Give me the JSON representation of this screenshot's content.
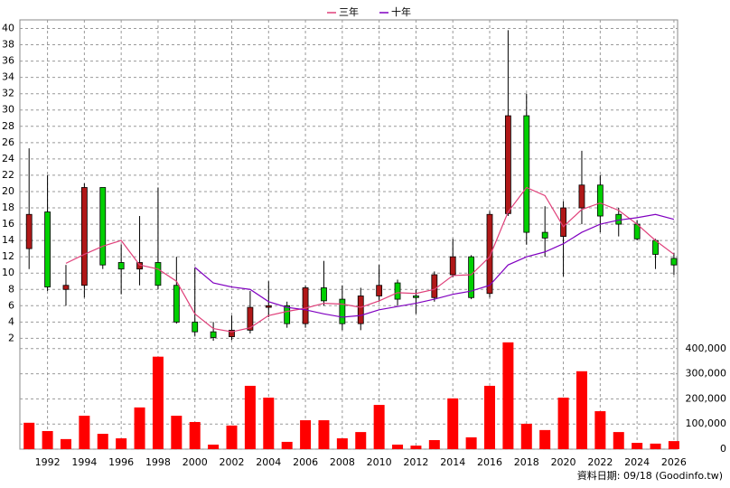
{
  "chart_data": {
    "type": "candlestick",
    "x": [
      1991,
      1992,
      1993,
      1994,
      1995,
      1996,
      1997,
      1998,
      1999,
      2000,
      2001,
      2002,
      2003,
      2004,
      2005,
      2006,
      2007,
      2008,
      2009,
      2010,
      2011,
      2012,
      2013,
      2014,
      2015,
      2016,
      2017,
      2018,
      2019,
      2020,
      2021,
      2022,
      2023,
      2024,
      2025,
      2026
    ],
    "xlim": [
      1990.5,
      2026.2
    ],
    "xticks": [
      1992,
      1994,
      1996,
      1998,
      2000,
      2002,
      2004,
      2006,
      2008,
      2010,
      2012,
      2014,
      2016,
      2018,
      2020,
      2022,
      2024,
      2026
    ],
    "ylim": [
      1.6,
      40.5
    ],
    "yticks": [
      2,
      4,
      6,
      8,
      10,
      12,
      14,
      16,
      18,
      20,
      22,
      24,
      26,
      28,
      30,
      32,
      34,
      36,
      38,
      40
    ],
    "y2lim": [
      0,
      428000
    ],
    "y2ticks": [
      0,
      {
        "value": 100000,
        "label": "100,000"
      },
      {
        "value": 200000,
        "label": "200,000"
      },
      {
        "value": 300000,
        "label": "300,000"
      },
      {
        "value": 400000,
        "label": "400,000"
      }
    ],
    "grid": true,
    "up_color": "#b01818",
    "down_color": "#00d000",
    "open": [
      13,
      17.5,
      8,
      8.5,
      20.5,
      11.3,
      10.5,
      11.3,
      8.5,
      4,
      2.8,
      2.2,
      3,
      5.8,
      6,
      3.8,
      8.2,
      6.8,
      3.8,
      7.2,
      8.8,
      7.2,
      7,
      9.8,
      12,
      7.5,
      17.3,
      29.3,
      15,
      14.5,
      18,
      20.8,
      17.2,
      16,
      14,
      11.8
    ],
    "high": [
      25.3,
      22,
      11,
      21,
      20.5,
      13.5,
      17,
      20.5,
      12,
      10.7,
      4,
      4.8,
      7.8,
      9,
      6.5,
      8.5,
      11.5,
      8.5,
      8.2,
      11,
      9.2,
      8,
      10.2,
      14.2,
      12.2,
      17.6,
      39.8,
      32,
      18.2,
      18.8,
      25,
      22,
      18,
      16.5,
      14.2,
      12.5
    ],
    "low": [
      10.5,
      7.8,
      6,
      7,
      10.5,
      7.4,
      8.5,
      8,
      3.8,
      2.3,
      1.7,
      1.8,
      2.6,
      4.6,
      3.3,
      3.3,
      6,
      3,
      3,
      6.5,
      6,
      5,
      6.5,
      9.5,
      6.8,
      7,
      17,
      13.5,
      12,
      9.6,
      16,
      15,
      14.5,
      14,
      10.5,
      9.8
    ],
    "close": [
      17.2,
      8.3,
      8.5,
      20.5,
      11,
      10.5,
      11.3,
      8.5,
      4,
      2.8,
      2.1,
      3,
      5.8,
      6,
      3.8,
      8.2,
      6.6,
      3.8,
      7.2,
      8.5,
      6.8,
      7,
      9.8,
      12,
      7,
      17.2,
      29.3,
      15,
      14.3,
      18,
      20.8,
      17,
      16,
      14.2,
      12.3,
      11
    ],
    "series": [
      {
        "name": "三年",
        "color": "#e0407a",
        "values": [
          null,
          null,
          11.2,
          12.3,
          13.3,
          14,
          11,
          10.5,
          9,
          5,
          3.2,
          2.8,
          3.3,
          4.8,
          5.3,
          5.7,
          6.3,
          6.2,
          5.8,
          6.6,
          7.6,
          7.5,
          8,
          9.7,
          9.8,
          12,
          17.5,
          20.5,
          19.5,
          15.7,
          17.8,
          18.6,
          17.7,
          16,
          14,
          12.3
        ]
      },
      {
        "name": "十年",
        "color": "#8000c0",
        "values": [
          null,
          null,
          null,
          null,
          null,
          null,
          null,
          null,
          null,
          10.7,
          8.8,
          8.3,
          8,
          6.5,
          5.8,
          5.5,
          5,
          4.6,
          4.8,
          5.5,
          5.9,
          6.3,
          6.8,
          7.4,
          7.8,
          8.5,
          11,
          12,
          12.6,
          13.6,
          15,
          16,
          16.5,
          16.8,
          17.2,
          16.6
        ]
      }
    ],
    "volume": {
      "axis": "y2",
      "color": "#ff0000",
      "values": [
        105000,
        72000,
        40000,
        133000,
        61000,
        43000,
        166000,
        368000,
        133000,
        108000,
        18000,
        94000,
        252000,
        205000,
        29000,
        115000,
        115000,
        43000,
        68000,
        176000,
        18000,
        14000,
        36000,
        202000,
        47000,
        252000,
        425000,
        101000,
        76000,
        205000,
        310000,
        151000,
        68000,
        25000,
        22000,
        32000
      ]
    },
    "footnote": "資料日期: 09/18 (Goodinfo.tw)"
  }
}
